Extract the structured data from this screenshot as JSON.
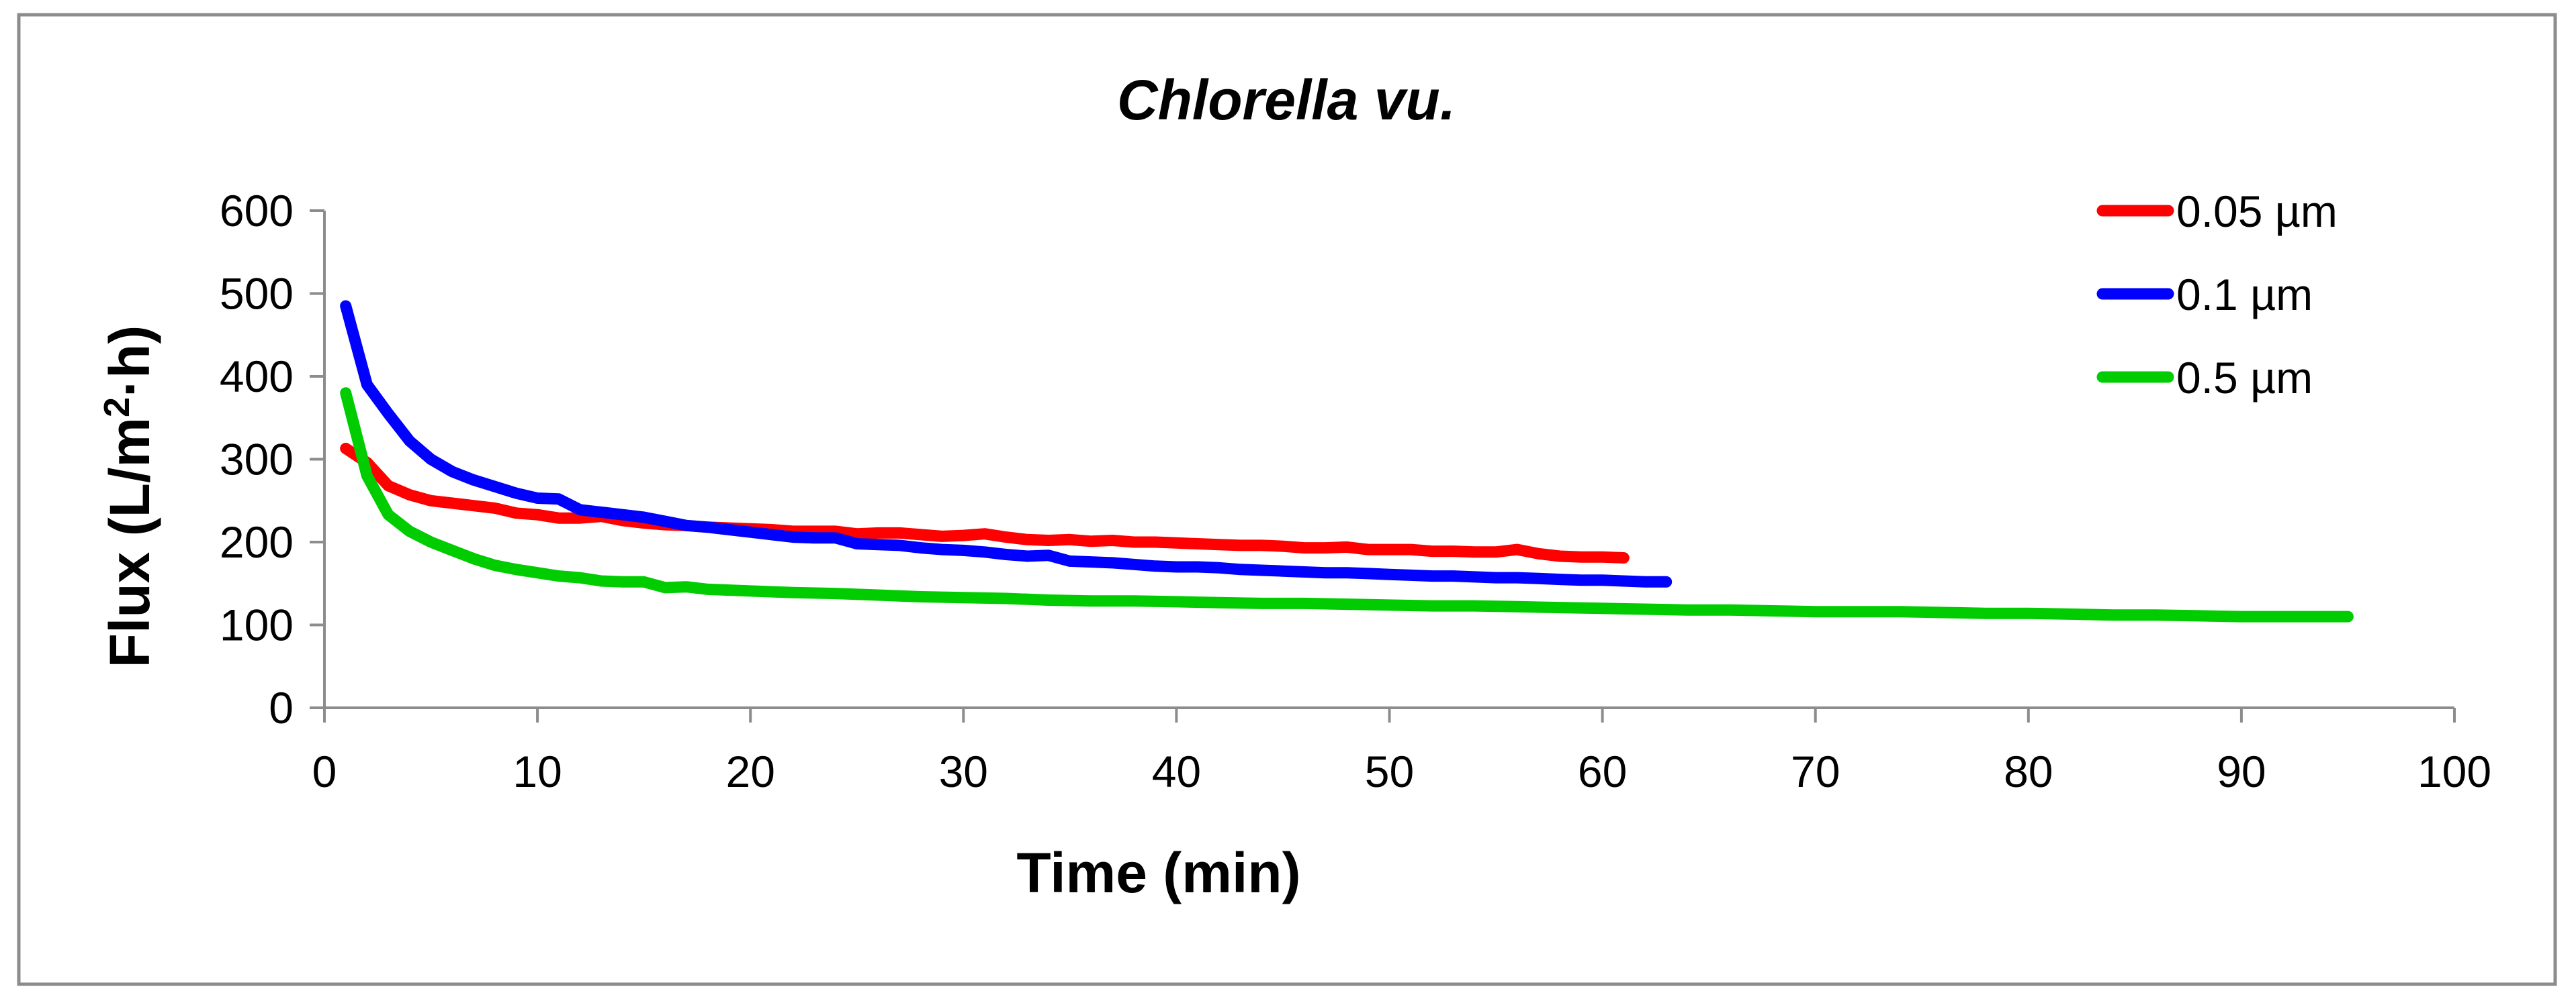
{
  "chart_data": {
    "type": "line",
    "title": "Chlorella vu.",
    "xlabel": "Time (min)",
    "ylabel_parts": {
      "prefix": "Flux (L/m",
      "superscript": "2",
      "suffix": "·h)"
    },
    "ylabel": "Flux (L/m²·h)",
    "xlim": [
      0,
      100
    ],
    "ylim": [
      0,
      600
    ],
    "x_ticks": [
      0,
      10,
      20,
      30,
      40,
      50,
      60,
      70,
      80,
      90,
      100
    ],
    "y_ticks": [
      0,
      100,
      200,
      300,
      400,
      500,
      600
    ],
    "x_tick_labels": [
      "0",
      "10",
      "20",
      "30",
      "40",
      "50",
      "60",
      "70",
      "80",
      "90",
      "100"
    ],
    "y_tick_labels": [
      "0",
      "100",
      "200",
      "300",
      "400",
      "500",
      "600"
    ],
    "grid": false,
    "legend_position": "top-right",
    "series": [
      {
        "name": "0.05 µm",
        "color": "#ff0000",
        "x": [
          1,
          2,
          3,
          4,
          5,
          6,
          7,
          8,
          9,
          10,
          11,
          12,
          13,
          14,
          15,
          16,
          17,
          18,
          19,
          20,
          21,
          22,
          23,
          24,
          25,
          26,
          27,
          28,
          29,
          30,
          31,
          32,
          33,
          34,
          35,
          36,
          37,
          38,
          39,
          40,
          41,
          42,
          43,
          44,
          45,
          46,
          47,
          48,
          49,
          50,
          51,
          52,
          53,
          54,
          55,
          56,
          57,
          58,
          59,
          60,
          61
        ],
        "y": [
          313,
          296,
          268,
          257,
          250,
          247,
          244,
          241,
          235,
          233,
          229,
          229,
          231,
          226,
          223,
          221,
          220,
          218,
          217,
          216,
          215,
          213,
          213,
          213,
          210,
          211,
          211,
          209,
          207,
          208,
          210,
          206,
          203,
          202,
          203,
          201,
          202,
          200,
          200,
          199,
          198,
          197,
          196,
          196,
          195,
          193,
          193,
          194,
          191,
          191,
          191,
          189,
          189,
          188,
          188,
          191,
          186,
          183,
          182,
          182,
          181
        ]
      },
      {
        "name": "0.1 µm",
        "color": "#0000ff",
        "x": [
          1,
          2,
          3,
          4,
          5,
          6,
          7,
          8,
          9,
          10,
          11,
          12,
          13,
          14,
          15,
          16,
          17,
          18,
          19,
          20,
          21,
          22,
          23,
          24,
          25,
          26,
          27,
          28,
          29,
          30,
          31,
          32,
          33,
          34,
          35,
          36,
          37,
          38,
          39,
          40,
          41,
          42,
          43,
          44,
          45,
          46,
          47,
          48,
          49,
          50,
          51,
          52,
          53,
          54,
          55,
          56,
          57,
          58,
          59,
          60,
          61,
          62,
          63
        ],
        "y": [
          485,
          390,
          355,
          322,
          300,
          285,
          275,
          267,
          259,
          253,
          252,
          239,
          236,
          233,
          230,
          225,
          220,
          218,
          215,
          212,
          209,
          206,
          205,
          205,
          198,
          197,
          196,
          193,
          191,
          190,
          188,
          185,
          183,
          184,
          177,
          176,
          175,
          173,
          171,
          170,
          170,
          169,
          167,
          166,
          165,
          164,
          163,
          163,
          162,
          161,
          160,
          159,
          159,
          158,
          157,
          157,
          156,
          155,
          154,
          154,
          153,
          152,
          152
        ]
      },
      {
        "name": "0.5 µm",
        "color": "#00cc00",
        "x": [
          1,
          2,
          3,
          4,
          5,
          6,
          7,
          8,
          9,
          10,
          11,
          12,
          13,
          14,
          15,
          16,
          17,
          18,
          19,
          20,
          22,
          24,
          26,
          28,
          30,
          32,
          34,
          36,
          38,
          40,
          42,
          44,
          46,
          48,
          50,
          52,
          54,
          56,
          58,
          60,
          62,
          64,
          66,
          68,
          70,
          72,
          74,
          76,
          78,
          80,
          82,
          84,
          86,
          88,
          90,
          92,
          95
        ],
        "y": [
          380,
          280,
          233,
          213,
          200,
          190,
          180,
          172,
          167,
          163,
          159,
          157,
          153,
          152,
          152,
          145,
          146,
          143,
          142,
          141,
          139,
          138,
          136,
          134,
          133,
          132,
          130,
          129,
          129,
          128,
          127,
          126,
          126,
          125,
          124,
          123,
          123,
          122,
          121,
          120,
          119,
          118,
          118,
          117,
          116,
          116,
          116,
          115,
          114,
          114,
          113,
          112,
          112,
          111,
          110,
          110,
          110
        ]
      }
    ]
  }
}
